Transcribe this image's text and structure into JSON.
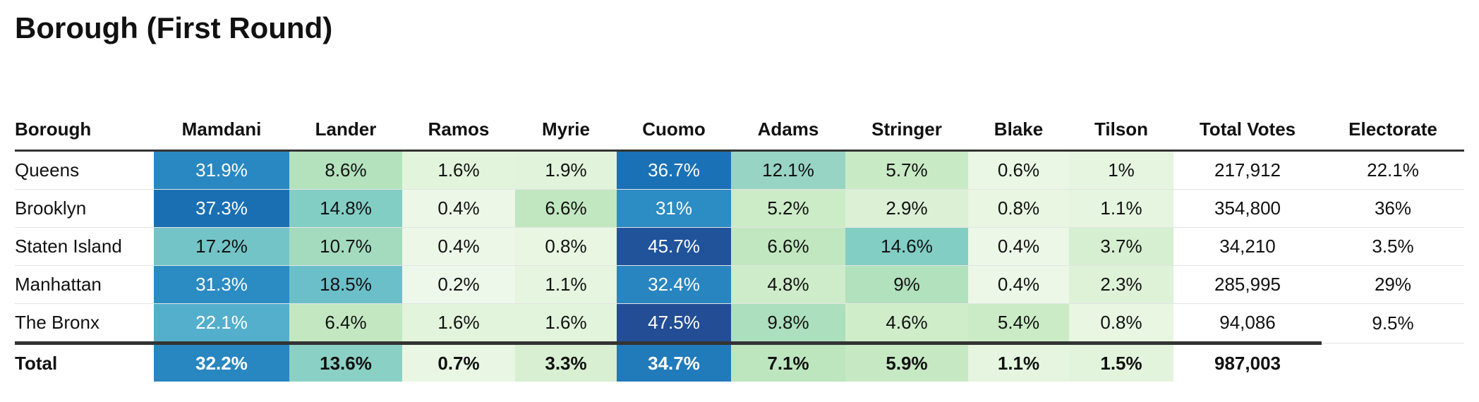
{
  "title": "Borough (First Round)",
  "table": {
    "columns": [
      "Borough",
      "Mamdani",
      "Lander",
      "Ramos",
      "Myrie",
      "Cuomo",
      "Adams",
      "Stringer",
      "Blake",
      "Tilson",
      "Total Votes",
      "Electorate"
    ],
    "rows": [
      [
        "Queens",
        "31.9%",
        "8.6%",
        "1.6%",
        "1.9%",
        "36.7%",
        "12.1%",
        "5.7%",
        "0.6%",
        "1%",
        "217,912",
        "22.1%"
      ],
      [
        "Brooklyn",
        "37.3%",
        "14.8%",
        "0.4%",
        "6.6%",
        "31%",
        "5.2%",
        "2.9%",
        "0.8%",
        "1.1%",
        "354,800",
        "36%"
      ],
      [
        "Staten Island",
        "17.2%",
        "10.7%",
        "0.4%",
        "0.8%",
        "45.7%",
        "6.6%",
        "14.6%",
        "0.4%",
        "3.7%",
        "34,210",
        "3.5%"
      ],
      [
        "Manhattan",
        "31.3%",
        "18.5%",
        "0.2%",
        "1.1%",
        "32.4%",
        "4.8%",
        "9%",
        "0.4%",
        "2.3%",
        "285,995",
        "29%"
      ],
      [
        "The Bronx",
        "22.1%",
        "6.4%",
        "1.6%",
        "1.6%",
        "47.5%",
        "9.8%",
        "4.6%",
        "5.4%",
        "0.8%",
        "94,086",
        "9.5%"
      ]
    ],
    "total": [
      "Total",
      "32.2%",
      "13.6%",
      "0.7%",
      "3.3%",
      "34.7%",
      "7.1%",
      "5.9%",
      "1.1%",
      "1.5%",
      "987,003"
    ]
  }
}
